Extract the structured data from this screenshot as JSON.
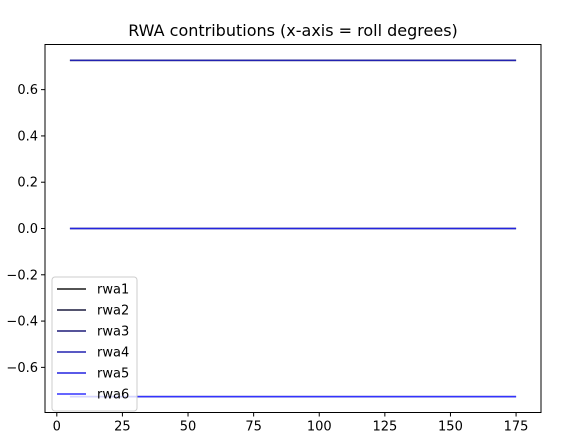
{
  "chart_data": {
    "type": "line",
    "title": "RWA contributions (x-axis = roll degrees)",
    "xlabel": "",
    "ylabel": "",
    "xlim": [
      -4.5,
      184.5
    ],
    "ylim": [
      -0.795,
      0.795
    ],
    "xticks": [
      0,
      25,
      50,
      75,
      100,
      125,
      150,
      175
    ],
    "yticks": [
      0.6,
      0.4,
      0.2,
      0.0,
      -0.2,
      -0.4,
      -0.6
    ],
    "xtick_labels": [
      "0",
      "25",
      "50",
      "75",
      "100",
      "125",
      "150",
      "175"
    ],
    "ytick_labels": [
      "0.6",
      "0.4",
      "0.2",
      "0.0",
      "−0.2",
      "−0.4",
      "−0.6"
    ],
    "legend_position": "lower left",
    "grid": false,
    "series": [
      {
        "name": "rwa1",
        "color": "#1a1a1a",
        "x": [
          5,
          175
        ],
        "y": [
          0.7265,
          0.7265
        ]
      },
      {
        "name": "rwa2",
        "color": "#1c1b3e",
        "x": [
          5,
          175
        ],
        "y": [
          0.0,
          0.0
        ]
      },
      {
        "name": "rwa3",
        "color": "#1e1c78",
        "x": [
          5,
          175
        ],
        "y": [
          -0.7265,
          -0.7265
        ]
      },
      {
        "name": "rwa4",
        "color": "#2222b0",
        "x": [
          5,
          175
        ],
        "y": [
          0.7265,
          0.7265
        ]
      },
      {
        "name": "rwa5",
        "color": "#2424e0",
        "x": [
          5,
          175
        ],
        "y": [
          0.0,
          0.0
        ]
      },
      {
        "name": "rwa6",
        "color": "#3333ff",
        "x": [
          5,
          175
        ],
        "y": [
          -0.7265,
          -0.7265
        ]
      }
    ]
  }
}
